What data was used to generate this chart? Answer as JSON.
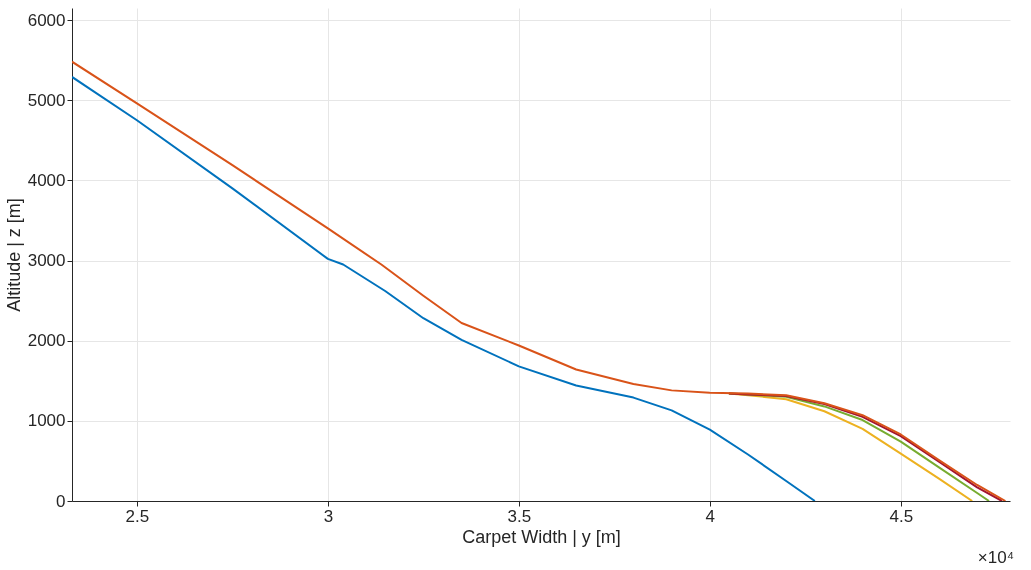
{
  "chart_data": {
    "type": "line",
    "xlabel": "Carpet Width | y [m]",
    "ylabel": "Altitude | z [m]",
    "xlim": [
      2.33,
      4.786
    ],
    "ylim": [
      0,
      6150
    ],
    "xticks": [
      2.5,
      3,
      3.5,
      4,
      4.5
    ],
    "yticks": [
      0,
      1000,
      2000,
      3000,
      4000,
      5000,
      6000
    ],
    "grid": true,
    "marker": "none",
    "line_style": "solid",
    "annotations": [
      "×10⁴"
    ],
    "series": [
      {
        "color": "#0072bd",
        "x": [
          2.33,
          2.5,
          2.75,
          3.0,
          3.04,
          3.15,
          3.25,
          3.35,
          3.5,
          3.65,
          3.8,
          3.9,
          4.0,
          4.1,
          4.2,
          4.275
        ],
        "values": [
          5290,
          4750,
          3900,
          3020,
          2950,
          2620,
          2280,
          2010,
          1680,
          1440,
          1290,
          1130,
          890,
          580,
          250,
          0
        ]
      },
      {
        "color": "#edb120",
        "x": [
          4.05,
          4.1,
          4.2,
          4.3,
          4.4,
          4.5,
          4.6,
          4.687
        ],
        "values": [
          1340,
          1320,
          1270,
          1120,
          900,
          590,
          280,
          0
        ]
      },
      {
        "color": "#77ac30",
        "x": [
          4.05,
          4.1,
          4.2,
          4.3,
          4.4,
          4.5,
          4.6,
          4.7,
          4.731
        ],
        "values": [
          1340,
          1330,
          1300,
          1180,
          1010,
          740,
          420,
          100,
          0
        ]
      },
      {
        "color": "#a2142f",
        "x": [
          4.05,
          4.1,
          4.2,
          4.3,
          4.4,
          4.5,
          4.6,
          4.7,
          4.765
        ],
        "values": [
          1340,
          1330,
          1310,
          1210,
          1050,
          810,
          490,
          170,
          0
        ]
      },
      {
        "color": "#d95319",
        "x": [
          2.33,
          2.5,
          2.75,
          3.0,
          3.14,
          3.25,
          3.35,
          3.5,
          3.65,
          3.8,
          3.9,
          4.0,
          4.1,
          4.2,
          4.3,
          4.4,
          4.5,
          4.6,
          4.7,
          4.774
        ],
        "values": [
          5480,
          4960,
          4190,
          3400,
          2950,
          2560,
          2220,
          1940,
          1640,
          1460,
          1380,
          1350,
          1340,
          1320,
          1220,
          1070,
          830,
          510,
          200,
          0
        ]
      }
    ]
  }
}
